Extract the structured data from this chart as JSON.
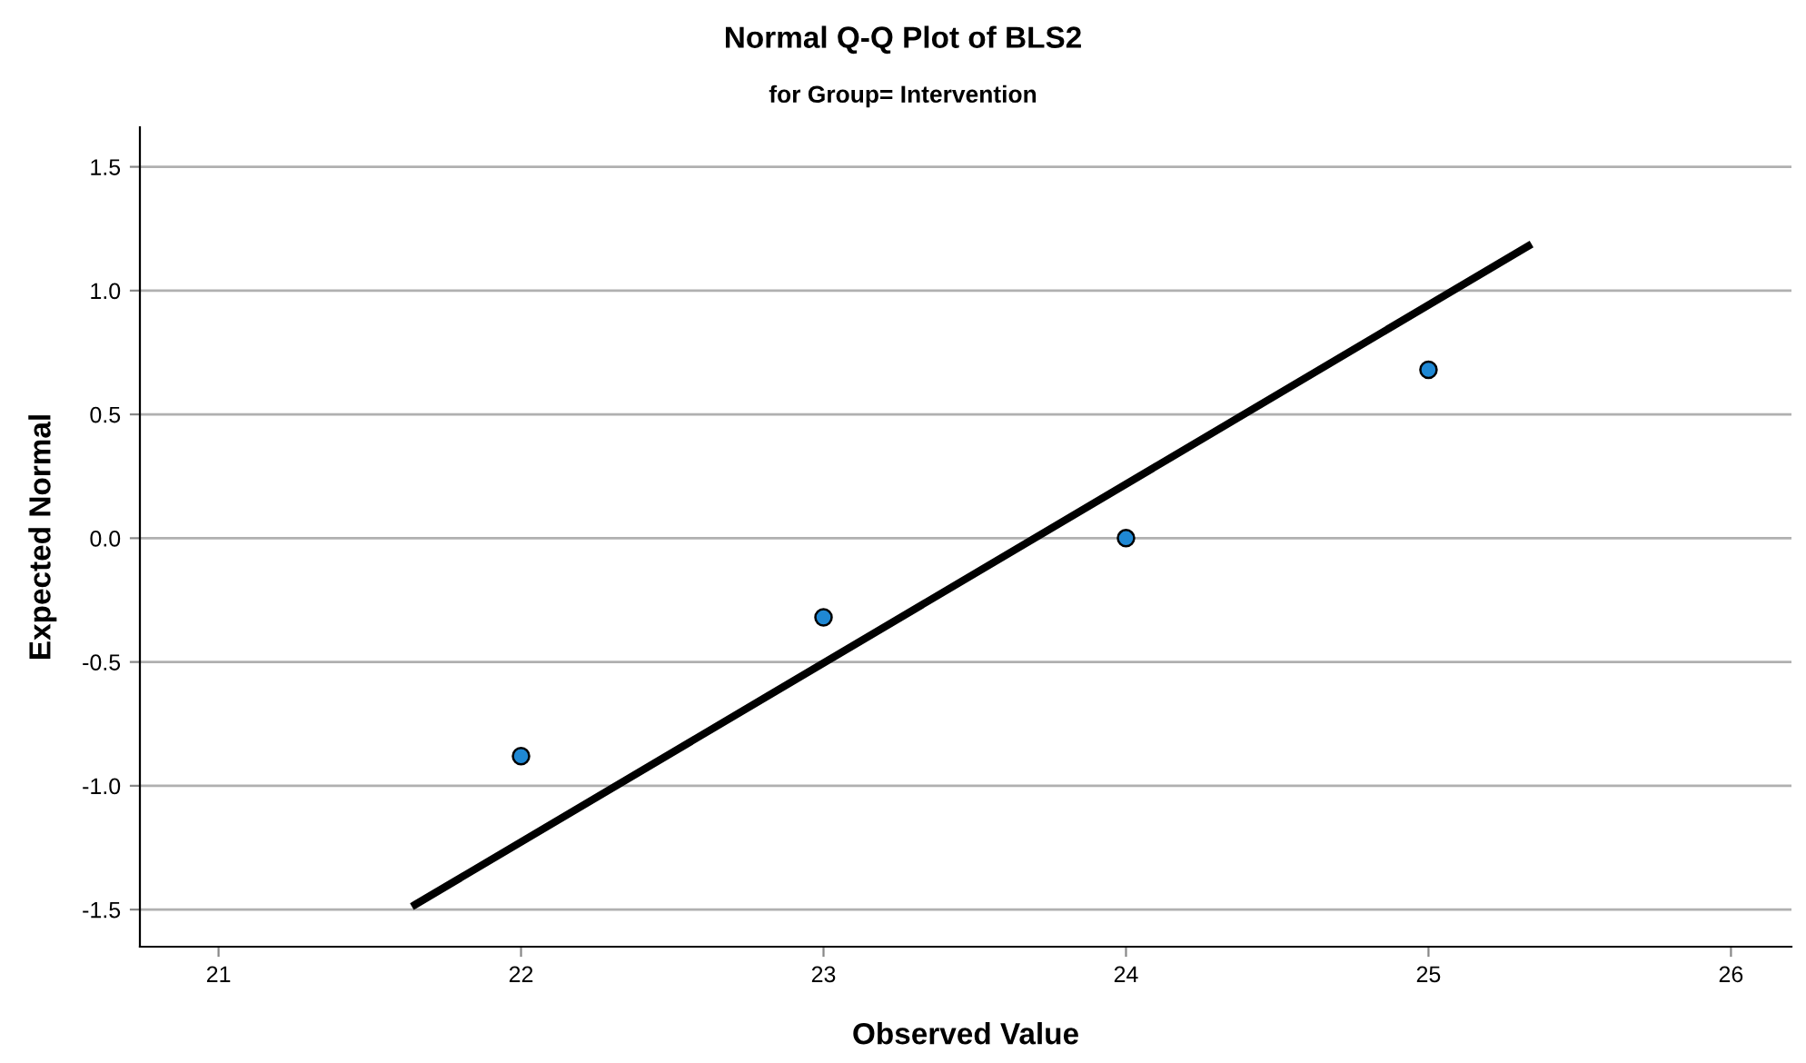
{
  "chart_data": {
    "type": "scatter",
    "title": "Normal Q-Q Plot of BLS2",
    "subtitle": "for Group= Intervention",
    "xlabel": "Observed Value",
    "ylabel": "Expected Normal",
    "series": [
      {
        "marker": "circle",
        "color": "#1f88d4",
        "x": [
          22,
          23,
          24,
          25
        ],
        "values": [
          -0.88,
          -0.32,
          0.0,
          0.68
        ]
      },
      {
        "type": "line",
        "marker": "none",
        "color": "#000000",
        "x": [
          21.65,
          25.33
        ],
        "values": [
          -1.48,
          1.18
        ]
      }
    ],
    "xlim": [
      20.74,
      26.2
    ],
    "xticks": [
      21,
      22,
      23,
      24,
      25,
      26
    ],
    "ylim": [
      -1.65,
      1.66
    ],
    "yticks": [
      {
        "value": -1.5,
        "label": "-1.5"
      },
      {
        "value": -1.0,
        "label": "-1.0"
      },
      {
        "value": -0.5,
        "label": "-0.5"
      },
      {
        "value": 0.0,
        "label": "0.0"
      },
      {
        "value": 0.5,
        "label": "0.5"
      },
      {
        "value": 1.0,
        "label": "1.0"
      },
      {
        "value": 1.5,
        "label": "1.5"
      }
    ],
    "grid": "y"
  }
}
